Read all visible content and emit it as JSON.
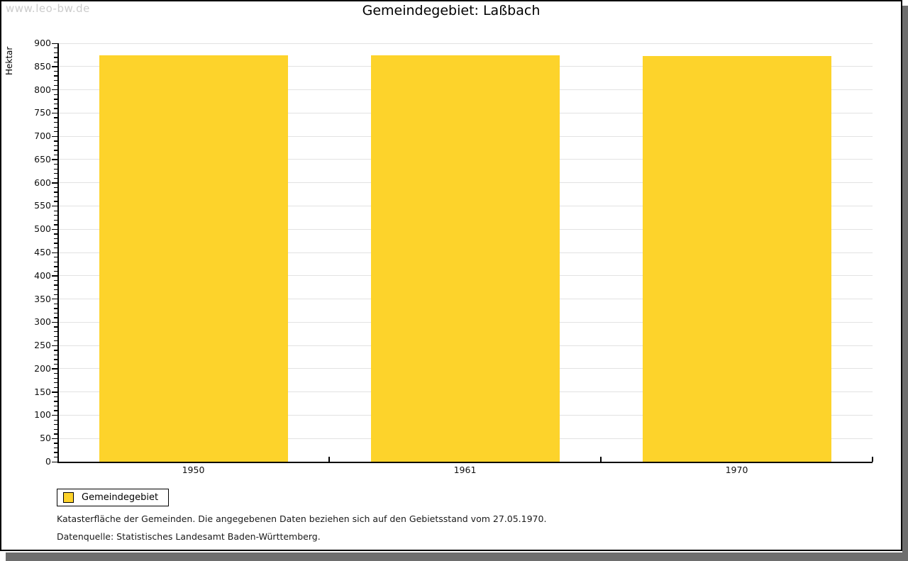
{
  "watermark": "www.leo-bw.de",
  "title": "Gemeindegebiet: Laßbach",
  "chart_data": {
    "type": "bar",
    "title": "Gemeindegebiet: Laßbach",
    "categories": [
      "1950",
      "1961",
      "1970"
    ],
    "series": [
      {
        "name": "Gemeindegebiet",
        "values": [
          874,
          874,
          872
        ]
      }
    ],
    "xlabel": "",
    "ylabel": "Hektar",
    "ylim": [
      0,
      900
    ],
    "ytick_step": 50,
    "yminor_step": 10,
    "grid": true,
    "legend_position": "bottom-left",
    "bar_color": "#FDD32B"
  },
  "legend": {
    "label": "Gemeindegebiet",
    "swatch_color": "#FDD32B"
  },
  "footnotes": {
    "line1": "Katasterfläche der Gemeinden. Die angegebenen Daten beziehen sich auf den Gebietsstand vom 27.05.1970.",
    "line2": "Datenquelle: Statistisches Landesamt Baden-Württemberg."
  },
  "colors": {
    "bar": "#FDD32B",
    "grid": "#E2E2E2",
    "axis": "#000000",
    "shadow": "#6E6E6E",
    "watermark": "#CCCCCC",
    "background": "#FFFFFF"
  }
}
